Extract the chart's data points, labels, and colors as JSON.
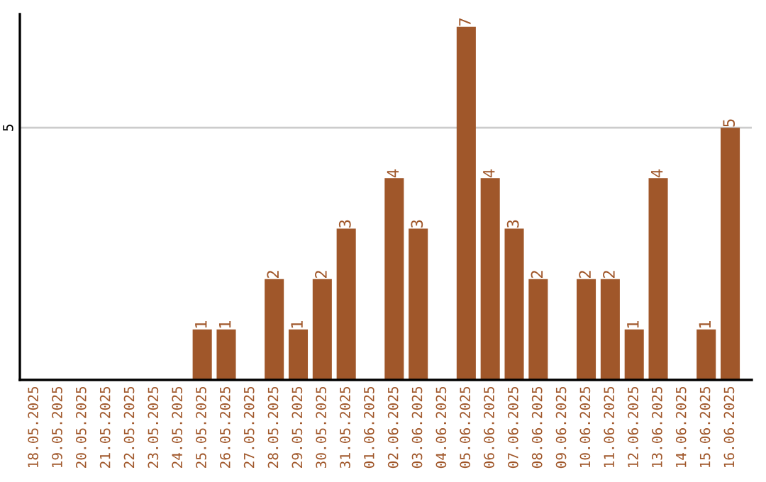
{
  "chart_data": {
    "type": "bar",
    "categories": [
      "18.05.2025",
      "19.05.2025",
      "20.05.2025",
      "21.05.2025",
      "22.05.2025",
      "23.05.2025",
      "24.05.2025",
      "25.05.2025",
      "26.05.2025",
      "27.05.2025",
      "28.05.2025",
      "29.05.2025",
      "30.05.2025",
      "31.05.2025",
      "01.06.2025",
      "02.06.2025",
      "03.06.2025",
      "04.06.2025",
      "05.06.2025",
      "06.06.2025",
      "07.06.2025",
      "08.06.2025",
      "09.06.2025",
      "10.06.2025",
      "11.06.2025",
      "12.06.2025",
      "13.06.2025",
      "14.06.2025",
      "15.06.2025",
      "16.06.2025"
    ],
    "values": [
      0,
      0,
      0,
      0,
      0,
      0,
      0,
      1,
      1,
      0,
      2,
      1,
      2,
      3,
      0,
      4,
      3,
      0,
      7,
      4,
      3,
      2,
      0,
      2,
      2,
      1,
      4,
      0,
      1,
      5
    ],
    "value_labels": [
      null,
      null,
      null,
      null,
      null,
      null,
      null,
      "1",
      "1",
      null,
      "2",
      "1",
      "2",
      "3",
      null,
      "4",
      "3",
      null,
      "7",
      "4",
      "3",
      "2",
      null,
      "2",
      "2",
      "1",
      "4",
      null,
      "1",
      "5"
    ],
    "color": "#a0572a",
    "ylim": [
      0,
      7.25
    ],
    "yticks": [
      5
    ],
    "grid": "y",
    "legend": false
  }
}
